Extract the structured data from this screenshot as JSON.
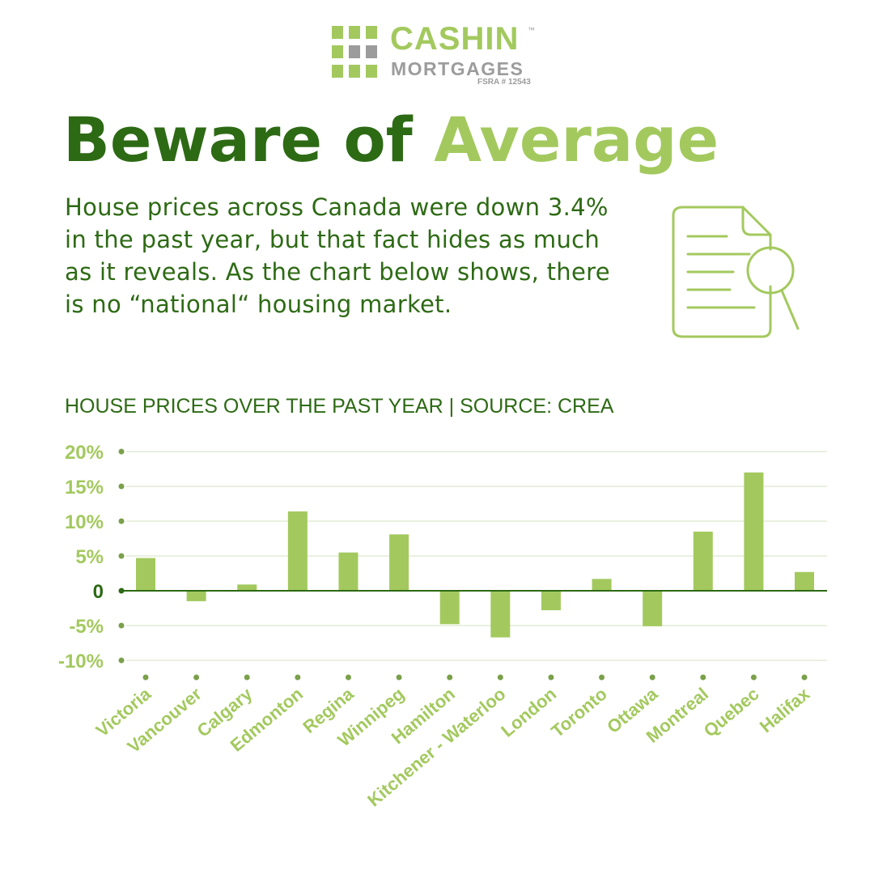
{
  "logo": {
    "name": "CASHIN",
    "trademark": "™",
    "subtitle": "MORTGAGES",
    "license": "FSRA # 12543"
  },
  "headline": {
    "part1": "Beware of",
    "part2": "Average"
  },
  "intro_text": "House prices across Canada were down 3.4% in the past year, but that fact hides as much as it reveals. As the chart below shows, there is no “national“ housing market.",
  "icon": "document-search-icon",
  "colors": {
    "dark_green": "#2d6a14",
    "light_green": "#a3c95e",
    "gray": "#9c9c9c"
  },
  "chart_data": {
    "type": "bar",
    "title": "HOUSE PRICES OVER THE PAST YEAR  |  SOURCE: CREA",
    "categories": [
      "Victoria",
      "Vancouver",
      "Calgary",
      "Edmonton",
      "Regina",
      "Winnipeg",
      "Hamilton",
      "Kitchener - Waterloo",
      "London",
      "Toronto",
      "Ottawa",
      "Montreal",
      "Quebec",
      "Halifax"
    ],
    "values": [
      4.7,
      -1.5,
      0.9,
      11.4,
      5.5,
      8.1,
      -4.8,
      -6.7,
      -2.8,
      1.7,
      -5.1,
      8.5,
      17.0,
      2.7
    ],
    "yticks": [
      20,
      15,
      10,
      5,
      0,
      -5,
      -10
    ],
    "ytick_labels": [
      "20%",
      "15%",
      "10%",
      "5%",
      "0",
      "-5%",
      "-10%"
    ],
    "ylim": [
      -10,
      20
    ],
    "grid": true
  }
}
